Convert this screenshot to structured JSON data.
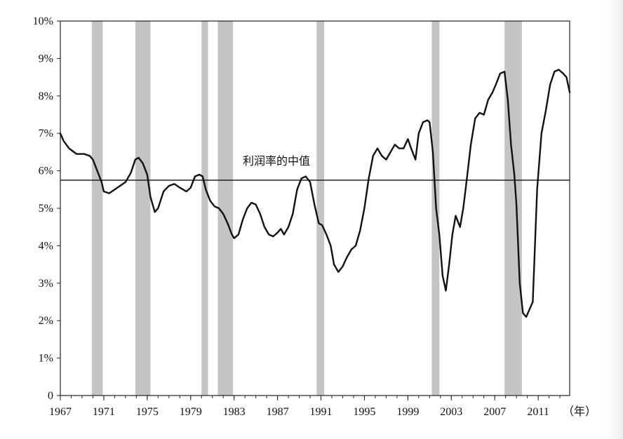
{
  "chart_data": {
    "type": "line",
    "title": "",
    "xlabel": "",
    "x_unit": "（年）",
    "ylabel": "",
    "xlim": [
      1967,
      2013.9
    ],
    "ylim": [
      0,
      10
    ],
    "x_ticks": [
      1967,
      1971,
      1975,
      1979,
      1983,
      1987,
      1991,
      1995,
      1999,
      2003,
      2007,
      2011
    ],
    "x_tick_labels": [
      "1967",
      "1971",
      "1975",
      "1979",
      "1983",
      "1987",
      "1991",
      "1995",
      "1999",
      "2003",
      "2007",
      "2011"
    ],
    "y_ticks": [
      0,
      1,
      2,
      3,
      4,
      5,
      6,
      7,
      8,
      9,
      10
    ],
    "y_tick_labels": [
      "0",
      "1%",
      "2%",
      "3%",
      "4%",
      "5%",
      "6%",
      "7%",
      "8%",
      "9%",
      "10%"
    ],
    "grid": false,
    "recession_shading": [
      [
        1969.9,
        1970.9
      ],
      [
        1973.9,
        1975.3
      ],
      [
        1980.0,
        1980.6
      ],
      [
        1981.5,
        1982.9
      ],
      [
        1990.6,
        1991.3
      ],
      [
        2001.2,
        2001.9
      ],
      [
        2007.9,
        2009.5
      ]
    ],
    "series": [
      {
        "x": [
          1967.0,
          1967.3,
          1967.8,
          1968.5,
          1969.2,
          1969.7,
          1970.0,
          1970.4,
          1970.8,
          1971.0,
          1971.5,
          1972.0,
          1972.5,
          1973.0,
          1973.5,
          1973.9,
          1974.2,
          1974.6,
          1975.0,
          1975.3,
          1975.7,
          1976.0,
          1976.5,
          1977.0,
          1977.5,
          1978.0,
          1978.6,
          1979.0,
          1979.4,
          1979.8,
          1980.1,
          1980.4,
          1980.8,
          1981.2,
          1981.6,
          1982.0,
          1982.4,
          1982.8,
          1983.0,
          1983.4,
          1983.8,
          1984.2,
          1984.6,
          1985.0,
          1985.4,
          1985.8,
          1986.2,
          1986.6,
          1987.0,
          1987.3,
          1987.6,
          1988.0,
          1988.4,
          1988.8,
          1989.2,
          1989.6,
          1990.0,
          1990.4,
          1990.8,
          1991.1,
          1991.5,
          1991.9,
          1992.2,
          1992.6,
          1993.0,
          1993.4,
          1993.8,
          1994.2,
          1994.6,
          1995.0,
          1995.4,
          1995.8,
          1996.2,
          1996.6,
          1997.0,
          1997.4,
          1997.8,
          1998.2,
          1998.6,
          1999.0,
          1999.3,
          1999.7,
          2000.0,
          2000.4,
          2000.8,
          2001.0,
          2001.3,
          2001.6,
          2001.9,
          2002.2,
          2002.5,
          2002.8,
          2003.1,
          2003.4,
          2003.8,
          2004.1,
          2004.4,
          2004.8,
          2005.2,
          2005.6,
          2006.0,
          2006.4,
          2006.8,
          2007.1,
          2007.5,
          2007.9,
          2008.2,
          2008.5,
          2008.8,
          2009.0,
          2009.3,
          2009.6,
          2009.9,
          2010.2,
          2010.5,
          2010.9,
          2011.3,
          2011.7,
          2012.1,
          2012.5,
          2012.9,
          2013.3,
          2013.6,
          2013.9
        ],
        "values": [
          7.0,
          6.8,
          6.6,
          6.45,
          6.45,
          6.4,
          6.3,
          6.0,
          5.7,
          5.45,
          5.4,
          5.5,
          5.6,
          5.7,
          5.95,
          6.3,
          6.35,
          6.2,
          5.9,
          5.3,
          4.9,
          5.0,
          5.45,
          5.6,
          5.65,
          5.55,
          5.45,
          5.55,
          5.85,
          5.9,
          5.85,
          5.5,
          5.2,
          5.05,
          5.0,
          4.85,
          4.6,
          4.3,
          4.2,
          4.3,
          4.7,
          5.0,
          5.15,
          5.1,
          4.85,
          4.5,
          4.3,
          4.25,
          4.35,
          4.45,
          4.3,
          4.5,
          4.85,
          5.5,
          5.8,
          5.85,
          5.7,
          5.1,
          4.6,
          4.55,
          4.3,
          4.0,
          3.5,
          3.3,
          3.45,
          3.7,
          3.9,
          4.0,
          4.4,
          5.0,
          5.8,
          6.4,
          6.6,
          6.4,
          6.3,
          6.5,
          6.7,
          6.6,
          6.6,
          6.85,
          6.6,
          6.3,
          7.0,
          7.3,
          7.35,
          7.3,
          6.5,
          5.0,
          4.3,
          3.2,
          2.8,
          3.5,
          4.3,
          4.8,
          4.5,
          5.0,
          5.7,
          6.7,
          7.4,
          7.55,
          7.5,
          7.9,
          8.1,
          8.3,
          8.6,
          8.65,
          7.9,
          6.7,
          5.9,
          5.1,
          3.0,
          2.2,
          2.1,
          2.3,
          2.5,
          5.5,
          7.0,
          7.6,
          8.3,
          8.65,
          8.7,
          8.6,
          8.5,
          8.1
        ]
      }
    ],
    "reference_line": {
      "value": 5.75,
      "label": "利润率的中值"
    }
  }
}
